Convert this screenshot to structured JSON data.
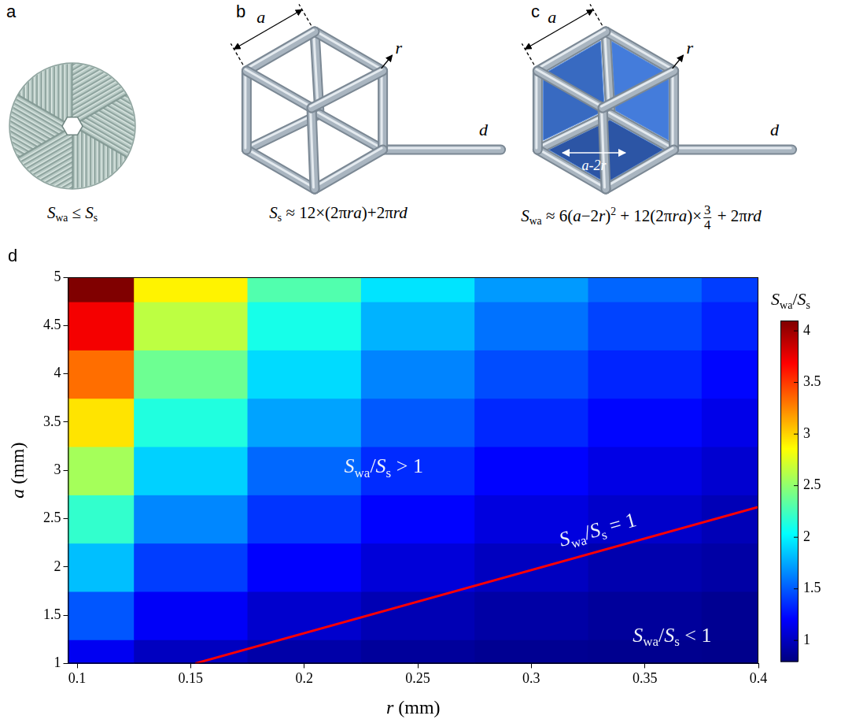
{
  "diagram": {
    "panels": [
      {
        "letter": "a",
        "formula": [
          {
            "t": "S",
            "i": true
          },
          {
            "sub": "wa"
          },
          {
            "t": " ≤ "
          },
          {
            "t": "S",
            "i": true
          },
          {
            "sub": "s"
          }
        ]
      },
      {
        "letter": "b",
        "labels": {
          "edge": "a",
          "radius": "r",
          "rod": "d"
        },
        "formula": [
          {
            "t": "S",
            "i": true
          },
          {
            "sub": "s"
          },
          {
            "t": " ≈ 12×(2π"
          },
          {
            "t": "ra",
            "i": true
          },
          {
            "t": ")+2π"
          },
          {
            "t": "rd",
            "i": true
          }
        ]
      },
      {
        "letter": "c",
        "labels": {
          "edge": "a",
          "radius": "r",
          "rod": "d",
          "inner": "a-2r"
        },
        "formula": [
          {
            "t": "S",
            "i": true
          },
          {
            "sub": "wa"
          },
          {
            "t": " ≈ 6("
          },
          {
            "t": "a",
            "i": true
          },
          {
            "t": "−2"
          },
          {
            "t": "r",
            "i": true
          },
          {
            "t": ")"
          },
          {
            "sup": "2"
          },
          {
            "t": " + 12(2π"
          },
          {
            "t": "ra",
            "i": true
          },
          {
            "t": ")×"
          },
          {
            "frac": [
              "3",
              "4"
            ]
          },
          {
            "t": " + 2π"
          },
          {
            "t": "rd",
            "i": true
          }
        ]
      }
    ]
  },
  "chart_data": {
    "type": "heatmap",
    "panel": "d",
    "x_label": [
      {
        "t": "r",
        "i": true
      },
      {
        "t": " (mm)"
      }
    ],
    "y_label": [
      {
        "t": "a",
        "i": true
      },
      {
        "t": " (mm)"
      }
    ],
    "x": [
      0.1,
      0.15,
      0.2,
      0.25,
      0.3,
      0.35,
      0.4
    ],
    "y": [
      1,
      1.5,
      2,
      2.5,
      3,
      3.5,
      4,
      4.5,
      5
    ],
    "cells": [
      [
        1.17,
        1.01,
        0.93,
        0.89,
        0.86,
        0.85,
        0.84
      ],
      [
        1.49,
        1.19,
        1.05,
        0.97,
        0.92,
        0.89,
        0.86
      ],
      [
        1.83,
        1.41,
        1.21,
        1.09,
        1.01,
        0.95,
        0.92
      ],
      [
        2.2,
        1.65,
        1.38,
        1.22,
        1.11,
        1.04,
        0.98
      ],
      [
        2.57,
        1.89,
        1.55,
        1.35,
        1.22,
        1.13,
        1.06
      ],
      [
        2.95,
        2.14,
        1.74,
        1.5,
        1.34,
        1.23,
        1.14
      ],
      [
        3.33,
        2.39,
        1.92,
        1.64,
        1.46,
        1.33,
        1.23
      ],
      [
        3.72,
        2.65,
        2.11,
        1.79,
        1.58,
        1.43,
        1.32
      ],
      [
        4.11,
        2.9,
        2.3,
        1.95,
        1.71,
        1.54,
        1.41
      ]
    ],
    "xlim": [
      0.096,
      0.4
    ],
    "xticks": [
      0.1,
      0.15,
      0.2,
      0.25,
      0.3,
      0.35,
      0.4
    ],
    "ylim": [
      1,
      5
    ],
    "yticks": [
      1,
      1.5,
      2,
      2.5,
      3,
      3.5,
      4,
      4.5,
      5
    ],
    "grid": false,
    "colorbar": {
      "title": [
        {
          "t": "S",
          "i": true
        },
        {
          "sub": "wa"
        },
        {
          "t": "/"
        },
        {
          "t": "S",
          "i": true
        },
        {
          "sub": "s"
        }
      ],
      "range": [
        0.8,
        4.1
      ],
      "ticks": [
        1,
        1.5,
        2,
        2.5,
        3,
        3.5,
        4
      ]
    },
    "contour": {
      "color": "#ff0000",
      "x": [
        0.152,
        0.4
      ],
      "y": [
        1,
        2.62
      ],
      "label": [
        {
          "t": "S",
          "i": true
        },
        {
          "sub": "wa"
        },
        {
          "t": "/"
        },
        {
          "t": "S",
          "i": true
        },
        {
          "sub": "s"
        },
        {
          "t": " = 1"
        }
      ],
      "label_x": 0.33,
      "label_y": 2.32
    },
    "annotations": [
      {
        "text": [
          {
            "t": "S",
            "i": true
          },
          {
            "sub": "wa"
          },
          {
            "t": "/"
          },
          {
            "t": "S",
            "i": true
          },
          {
            "sub": "s"
          },
          {
            "t": " > 1"
          }
        ],
        "x": 0.235,
        "y": 3.05
      },
      {
        "text": [
          {
            "t": "S",
            "i": true
          },
          {
            "sub": "wa"
          },
          {
            "t": "/"
          },
          {
            "t": "S",
            "i": true
          },
          {
            "sub": "s"
          },
          {
            "t": " < 1"
          }
        ],
        "x": 0.362,
        "y": 1.3
      }
    ]
  }
}
